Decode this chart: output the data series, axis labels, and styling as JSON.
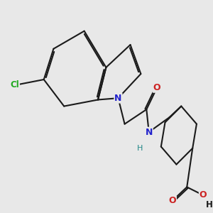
{
  "bg_color": "#e8e8e8",
  "bond_color": "#1a1a1a",
  "bond_width": 1.5,
  "figsize": [
    3.0,
    3.0
  ],
  "dpi": 100,
  "atoms": {
    "Cl": {
      "color": "#22aa22"
    },
    "N": {
      "color": "#2222cc"
    },
    "O": {
      "color": "#cc2222"
    },
    "H_teal": {
      "color": "#228888"
    },
    "H_black": {
      "color": "#1a1a1a"
    }
  }
}
